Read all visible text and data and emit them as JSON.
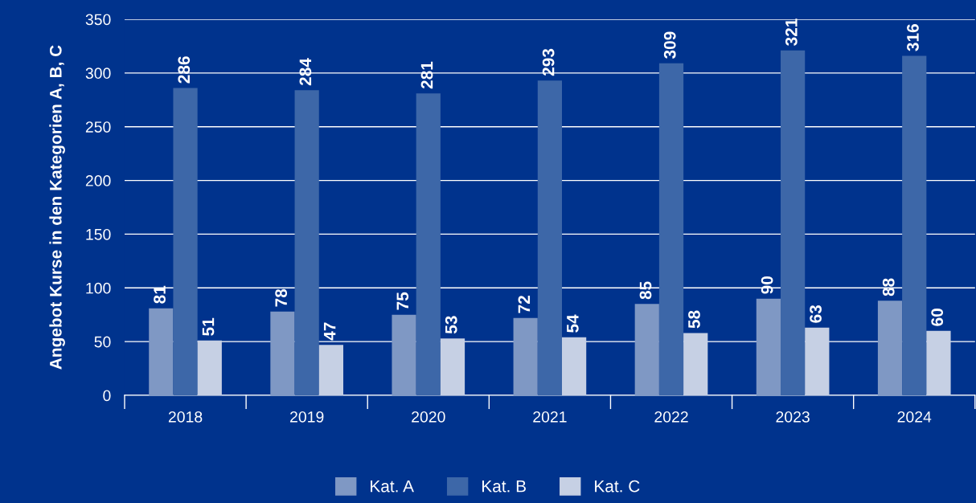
{
  "chart_data": {
    "type": "bar",
    "ylabel": "Angebot Kurse in den Kategorien A, B, C",
    "categories": [
      "2018",
      "2019",
      "2020",
      "2021",
      "2022",
      "2023",
      "2024"
    ],
    "series": [
      {
        "name": "Kat. A",
        "color": "#7f98c4",
        "values": [
          81,
          78,
          75,
          72,
          85,
          90,
          88
        ]
      },
      {
        "name": "Kat. B",
        "color": "#3d67a8",
        "values": [
          286,
          284,
          281,
          293,
          309,
          321,
          316
        ]
      },
      {
        "name": "Kat. C",
        "color": "#c6d0e4",
        "values": [
          51,
          47,
          53,
          54,
          58,
          63,
          60
        ]
      }
    ],
    "ylim": [
      0,
      350
    ],
    "yticks": [
      0,
      50,
      100,
      150,
      200,
      250,
      300,
      350
    ],
    "grid": "y",
    "legend": "bottom",
    "data_labels": true
  }
}
